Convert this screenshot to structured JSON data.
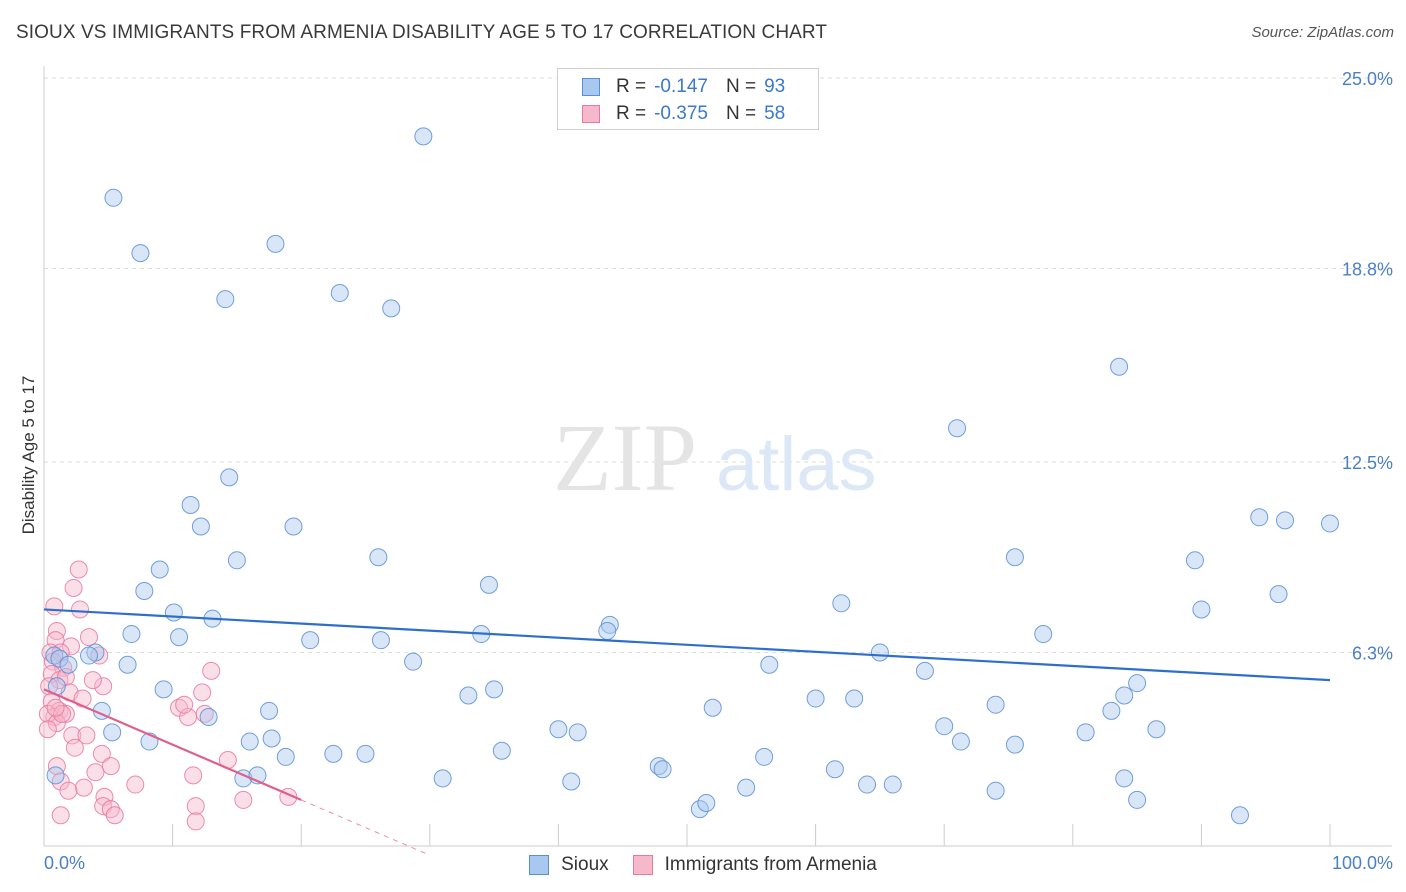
{
  "header": {
    "title": "SIOUX VS IMMIGRANTS FROM ARMENIA DISABILITY AGE 5 TO 17 CORRELATION CHART",
    "source": "Source: ZipAtlas.com"
  },
  "watermark": {
    "zip": "ZIP",
    "atlas": "atlas"
  },
  "legend": {
    "rows": [
      {
        "r_label": "R =",
        "r_value": "-0.147",
        "n_label": "N =",
        "n_value": "93"
      },
      {
        "r_label": "R =",
        "r_value": "-0.375",
        "n_label": "N =",
        "n_value": "58"
      }
    ]
  },
  "bottom_legend": {
    "sioux": "Sioux",
    "armenia": "Immigrants from Armenia"
  },
  "chart_data": {
    "type": "scatter",
    "title": "SIOUX VS IMMIGRANTS FROM ARMENIA DISABILITY AGE 5 TO 17 CORRELATION CHART",
    "xlabel": "",
    "ylabel": "Disability Age 5 to 17",
    "xlim": [
      0,
      100
    ],
    "ylim": [
      0,
      25.0
    ],
    "x_tick_labels": {
      "min": "0.0%",
      "max": "100.0%"
    },
    "y_ticks": [
      {
        "value": 6.3,
        "label": "6.3%"
      },
      {
        "value": 12.5,
        "label": "12.5%"
      },
      {
        "value": 18.8,
        "label": "18.8%"
      },
      {
        "value": 25.0,
        "label": "25.0%"
      }
    ],
    "colors": {
      "sioux_fill": "#a9c8f0",
      "sioux_stroke": "#5b8fd4",
      "sioux_line": "#2f6fcc",
      "armenia_fill": "#f6b9cc",
      "armenia_stroke": "#e8799e",
      "armenia_line": "#e0608a"
    },
    "series": [
      {
        "name": "Sioux",
        "r": -0.147,
        "n": 93,
        "trend": {
          "x0": 0,
          "y0": 7.7,
          "x1": 100,
          "y1": 5.4
        },
        "points": [
          [
            29.5,
            23.1
          ],
          [
            5.4,
            21.1
          ],
          [
            7.5,
            19.3
          ],
          [
            18.0,
            19.6
          ],
          [
            23.0,
            18.0
          ],
          [
            14.1,
            17.8
          ],
          [
            27.0,
            17.5
          ],
          [
            83.6,
            15.6
          ],
          [
            71.0,
            13.6
          ],
          [
            14.4,
            12.0
          ],
          [
            11.4,
            11.1
          ],
          [
            19.4,
            10.4
          ],
          [
            12.2,
            10.4
          ],
          [
            94.5,
            10.7
          ],
          [
            96.5,
            10.6
          ],
          [
            100.0,
            10.5
          ],
          [
            26.0,
            9.4
          ],
          [
            15.0,
            9.3
          ],
          [
            75.5,
            9.4
          ],
          [
            89.5,
            9.3
          ],
          [
            9.0,
            9.0
          ],
          [
            34.6,
            8.5
          ],
          [
            7.8,
            8.3
          ],
          [
            96.0,
            8.2
          ],
          [
            62.0,
            7.9
          ],
          [
            90.0,
            7.7
          ],
          [
            10.1,
            7.6
          ],
          [
            13.1,
            7.4
          ],
          [
            44.0,
            7.2
          ],
          [
            6.8,
            6.9
          ],
          [
            10.5,
            6.8
          ],
          [
            34.0,
            6.9
          ],
          [
            43.8,
            7.0
          ],
          [
            77.7,
            6.9
          ],
          [
            20.7,
            6.7
          ],
          [
            26.2,
            6.7
          ],
          [
            4.0,
            6.3
          ],
          [
            0.8,
            6.2
          ],
          [
            1.2,
            6.1
          ],
          [
            1.9,
            5.9
          ],
          [
            3.5,
            6.2
          ],
          [
            6.5,
            5.9
          ],
          [
            28.7,
            6.0
          ],
          [
            56.4,
            5.9
          ],
          [
            65.0,
            6.3
          ],
          [
            68.5,
            5.7
          ],
          [
            1.0,
            5.2
          ],
          [
            9.3,
            5.1
          ],
          [
            33.0,
            4.9
          ],
          [
            35.0,
            5.1
          ],
          [
            60.0,
            4.8
          ],
          [
            63.0,
            4.8
          ],
          [
            85.0,
            5.3
          ],
          [
            84.0,
            4.9
          ],
          [
            17.5,
            4.4
          ],
          [
            4.5,
            4.4
          ],
          [
            12.8,
            4.2
          ],
          [
            52.0,
            4.5
          ],
          [
            74.0,
            4.6
          ],
          [
            83.0,
            4.4
          ],
          [
            40.0,
            3.8
          ],
          [
            41.5,
            3.7
          ],
          [
            70.0,
            3.9
          ],
          [
            81.0,
            3.7
          ],
          [
            86.5,
            3.8
          ],
          [
            5.3,
            3.7
          ],
          [
            8.2,
            3.4
          ],
          [
            16.0,
            3.4
          ],
          [
            17.7,
            3.5
          ],
          [
            71.3,
            3.4
          ],
          [
            75.5,
            3.3
          ],
          [
            18.8,
            2.9
          ],
          [
            22.5,
            3.0
          ],
          [
            25.0,
            3.0
          ],
          [
            35.6,
            3.1
          ],
          [
            56.0,
            2.9
          ],
          [
            47.8,
            2.6
          ],
          [
            48.1,
            2.5
          ],
          [
            61.5,
            2.5
          ],
          [
            15.5,
            2.2
          ],
          [
            16.6,
            2.3
          ],
          [
            31.0,
            2.2
          ],
          [
            41.0,
            2.1
          ],
          [
            64.0,
            2.0
          ],
          [
            66.0,
            2.0
          ],
          [
            74.0,
            1.8
          ],
          [
            85.0,
            1.5
          ],
          [
            84.0,
            2.2
          ],
          [
            93.0,
            1.0
          ],
          [
            51.0,
            1.2
          ],
          [
            0.9,
            2.3
          ],
          [
            51.5,
            1.4
          ],
          [
            54.6,
            1.9
          ]
        ]
      },
      {
        "name": "Immigrants from Armenia",
        "r": -0.375,
        "n": 58,
        "trend": {
          "x0": 0,
          "y0": 5.1,
          "x1": 20,
          "y1": 1.5
        },
        "trend_ext": {
          "x0": 20,
          "y0": 1.5,
          "x1": 30,
          "y1": -0.3
        },
        "points": [
          [
            2.7,
            9.0
          ],
          [
            2.3,
            8.4
          ],
          [
            0.8,
            7.8
          ],
          [
            2.8,
            7.7
          ],
          [
            1.0,
            7.0
          ],
          [
            0.9,
            6.7
          ],
          [
            2.1,
            6.5
          ],
          [
            3.5,
            6.8
          ],
          [
            4.3,
            6.2
          ],
          [
            0.5,
            6.3
          ],
          [
            1.3,
            6.3
          ],
          [
            0.7,
            6.0
          ],
          [
            1.5,
            5.8
          ],
          [
            0.6,
            5.6
          ],
          [
            1.2,
            5.4
          ],
          [
            1.7,
            5.5
          ],
          [
            0.4,
            5.2
          ],
          [
            2.0,
            5.0
          ],
          [
            4.6,
            5.2
          ],
          [
            3.0,
            4.8
          ],
          [
            0.6,
            4.7
          ],
          [
            1.2,
            4.4
          ],
          [
            0.8,
            4.2
          ],
          [
            1.7,
            4.3
          ],
          [
            0.3,
            4.3
          ],
          [
            1.0,
            4.0
          ],
          [
            1.4,
            4.3
          ],
          [
            10.5,
            4.5
          ],
          [
            11.2,
            4.2
          ],
          [
            12.5,
            4.3
          ],
          [
            12.3,
            5.0
          ],
          [
            13.0,
            5.7
          ],
          [
            0.3,
            3.8
          ],
          [
            2.2,
            3.6
          ],
          [
            3.3,
            3.6
          ],
          [
            2.4,
            3.2
          ],
          [
            4.5,
            3.0
          ],
          [
            14.3,
            2.8
          ],
          [
            1.0,
            2.6
          ],
          [
            5.2,
            2.6
          ],
          [
            4.0,
            2.4
          ],
          [
            11.6,
            2.3
          ],
          [
            1.3,
            2.1
          ],
          [
            3.1,
            1.9
          ],
          [
            7.1,
            2.0
          ],
          [
            1.9,
            1.8
          ],
          [
            4.7,
            1.6
          ],
          [
            15.5,
            1.5
          ],
          [
            19.0,
            1.6
          ],
          [
            4.6,
            1.3
          ],
          [
            5.2,
            1.2
          ],
          [
            11.8,
            1.3
          ],
          [
            1.3,
            1.0
          ],
          [
            5.5,
            1.0
          ],
          [
            11.8,
            0.8
          ],
          [
            0.9,
            4.5
          ],
          [
            3.8,
            5.4
          ],
          [
            10.9,
            4.6
          ]
        ]
      }
    ]
  }
}
